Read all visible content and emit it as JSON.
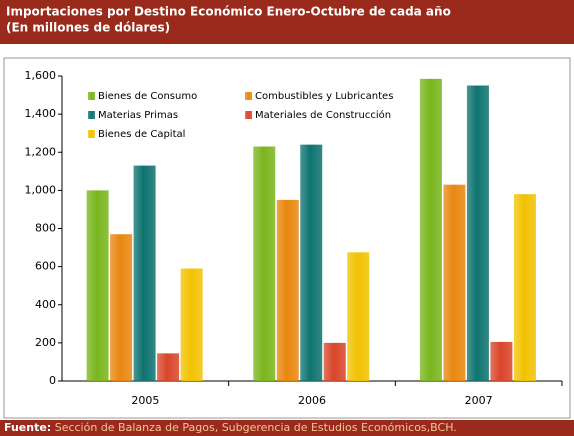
{
  "chart_data": {
    "type": "bar",
    "title": "Importaciones por Destino Económico Enero-Octubre de cada año",
    "subtitle": "(En millones de dólares)",
    "categories": [
      "2005",
      "2006",
      "2007"
    ],
    "series": [
      {
        "name": "Bienes de Consumo",
        "color": "#7ab51d",
        "values": [
          1000,
          1230,
          1585
        ]
      },
      {
        "name": "Combustibles y Lubricantes",
        "color": "#e8870f",
        "values": [
          770,
          950,
          1030
        ]
      },
      {
        "name": "Materias Primas",
        "color": "#0e7370",
        "values": [
          1130,
          1240,
          1550
        ]
      },
      {
        "name": "Materiales de Construcción",
        "color": "#d9452a",
        "values": [
          145,
          200,
          205
        ]
      },
      {
        "name": "Bienes de Capital",
        "color": "#f2c200",
        "values": [
          590,
          675,
          980
        ]
      }
    ],
    "ylim": [
      0,
      1600
    ],
    "yticks": [
      0,
      200,
      400,
      600,
      800,
      {
        "value": 1000,
        "label": "1,000"
      },
      {
        "value": 1200,
        "label": "1,200"
      },
      {
        "value": 1400,
        "label": "1,400"
      },
      {
        "value": 1600,
        "label": "1,600"
      }
    ],
    "grid": false,
    "legend": "upper-left",
    "footer": {
      "label": "Fuente:",
      "text": " Sección de Balanza de Pagos, Subgerencia de Estudios Económicos,BCH."
    }
  }
}
